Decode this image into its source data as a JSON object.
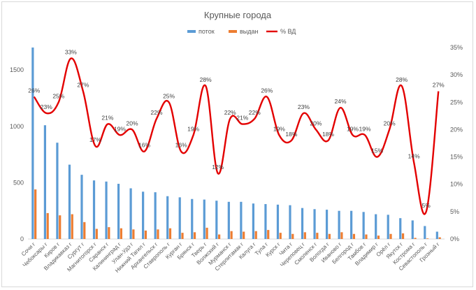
{
  "chart_data": {
    "type": "bar",
    "title": "Крупные города",
    "categories": [
      "Сочи г",
      "Чебоксары г",
      "Киров г",
      "Владикавказ г",
      "Сургут г",
      "Магнитогорск г",
      "Саранск г",
      "Калининград г",
      "Улан-Удэ г",
      "Нижний Тагил г",
      "Архангельск г",
      "Ставрополь г",
      "Курган г",
      "Брянск г",
      "Тверь г",
      "Волжский г",
      "Мурманск г",
      "Стерлитамак г",
      "Калуга г",
      "Тула г",
      "Курск г",
      "Чита г",
      "Череповец г",
      "Смоленск г",
      "Вологда г",
      "Иваново г",
      "Белгород г",
      "Тамбов г",
      "Владимир г",
      "Орёл г",
      "Якутск г",
      "Кострома г",
      "Севастополь г",
      "Грозный г"
    ],
    "series": [
      {
        "name": "поток",
        "axis": "left",
        "color": "#5b9bd5",
        "values": [
          1700,
          1010,
          855,
          660,
          570,
          520,
          510,
          490,
          450,
          420,
          415,
          380,
          370,
          355,
          350,
          340,
          330,
          330,
          315,
          310,
          305,
          300,
          275,
          265,
          260,
          250,
          250,
          240,
          220,
          215,
          185,
          165,
          115,
          65
        ]
      },
      {
        "name": "выдан",
        "axis": "left",
        "color": "#ed7d31",
        "values": [
          440,
          230,
          210,
          220,
          150,
          90,
          105,
          95,
          85,
          75,
          85,
          95,
          55,
          60,
          100,
          40,
          70,
          65,
          70,
          80,
          55,
          45,
          60,
          55,
          45,
          60,
          45,
          40,
          30,
          45,
          50,
          10,
          5,
          15
        ]
      },
      {
        "name": "% ВД",
        "axis": "right",
        "type": "line",
        "color": "#e30000",
        "values": [
          26,
          23,
          25,
          33,
          27,
          17,
          21,
          19,
          20,
          16,
          22,
          25,
          16,
          19,
          28,
          12,
          22,
          21,
          22,
          26,
          19,
          18,
          23,
          20,
          18,
          24,
          19,
          19,
          15,
          20,
          28,
          14,
          5,
          27
        ]
      }
    ],
    "yleft": {
      "min": 0,
      "max": 1700,
      "ticks": [
        0,
        500,
        1000,
        1500
      ]
    },
    "yright": {
      "min": 0,
      "max": 35,
      "ticks": [
        "0%",
        "5%",
        "10%",
        "15%",
        "20%",
        "25%",
        "30%",
        "35%"
      ]
    },
    "label_suffix": "%",
    "legend_position": "top"
  }
}
